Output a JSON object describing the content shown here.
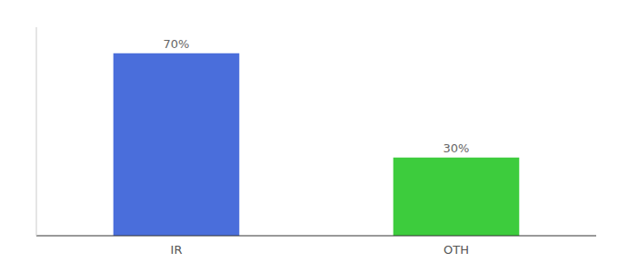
{
  "chart_data": {
    "type": "bar",
    "categories": [
      "IR",
      "OTH"
    ],
    "values": [
      70,
      30
    ],
    "value_labels": [
      "70%",
      "30%"
    ],
    "colors": [
      "#4a6edb",
      "#3dcc3d"
    ],
    "ylim": [
      0,
      80
    ],
    "data_labels": true,
    "tick_labels": "x",
    "grid": false
  }
}
